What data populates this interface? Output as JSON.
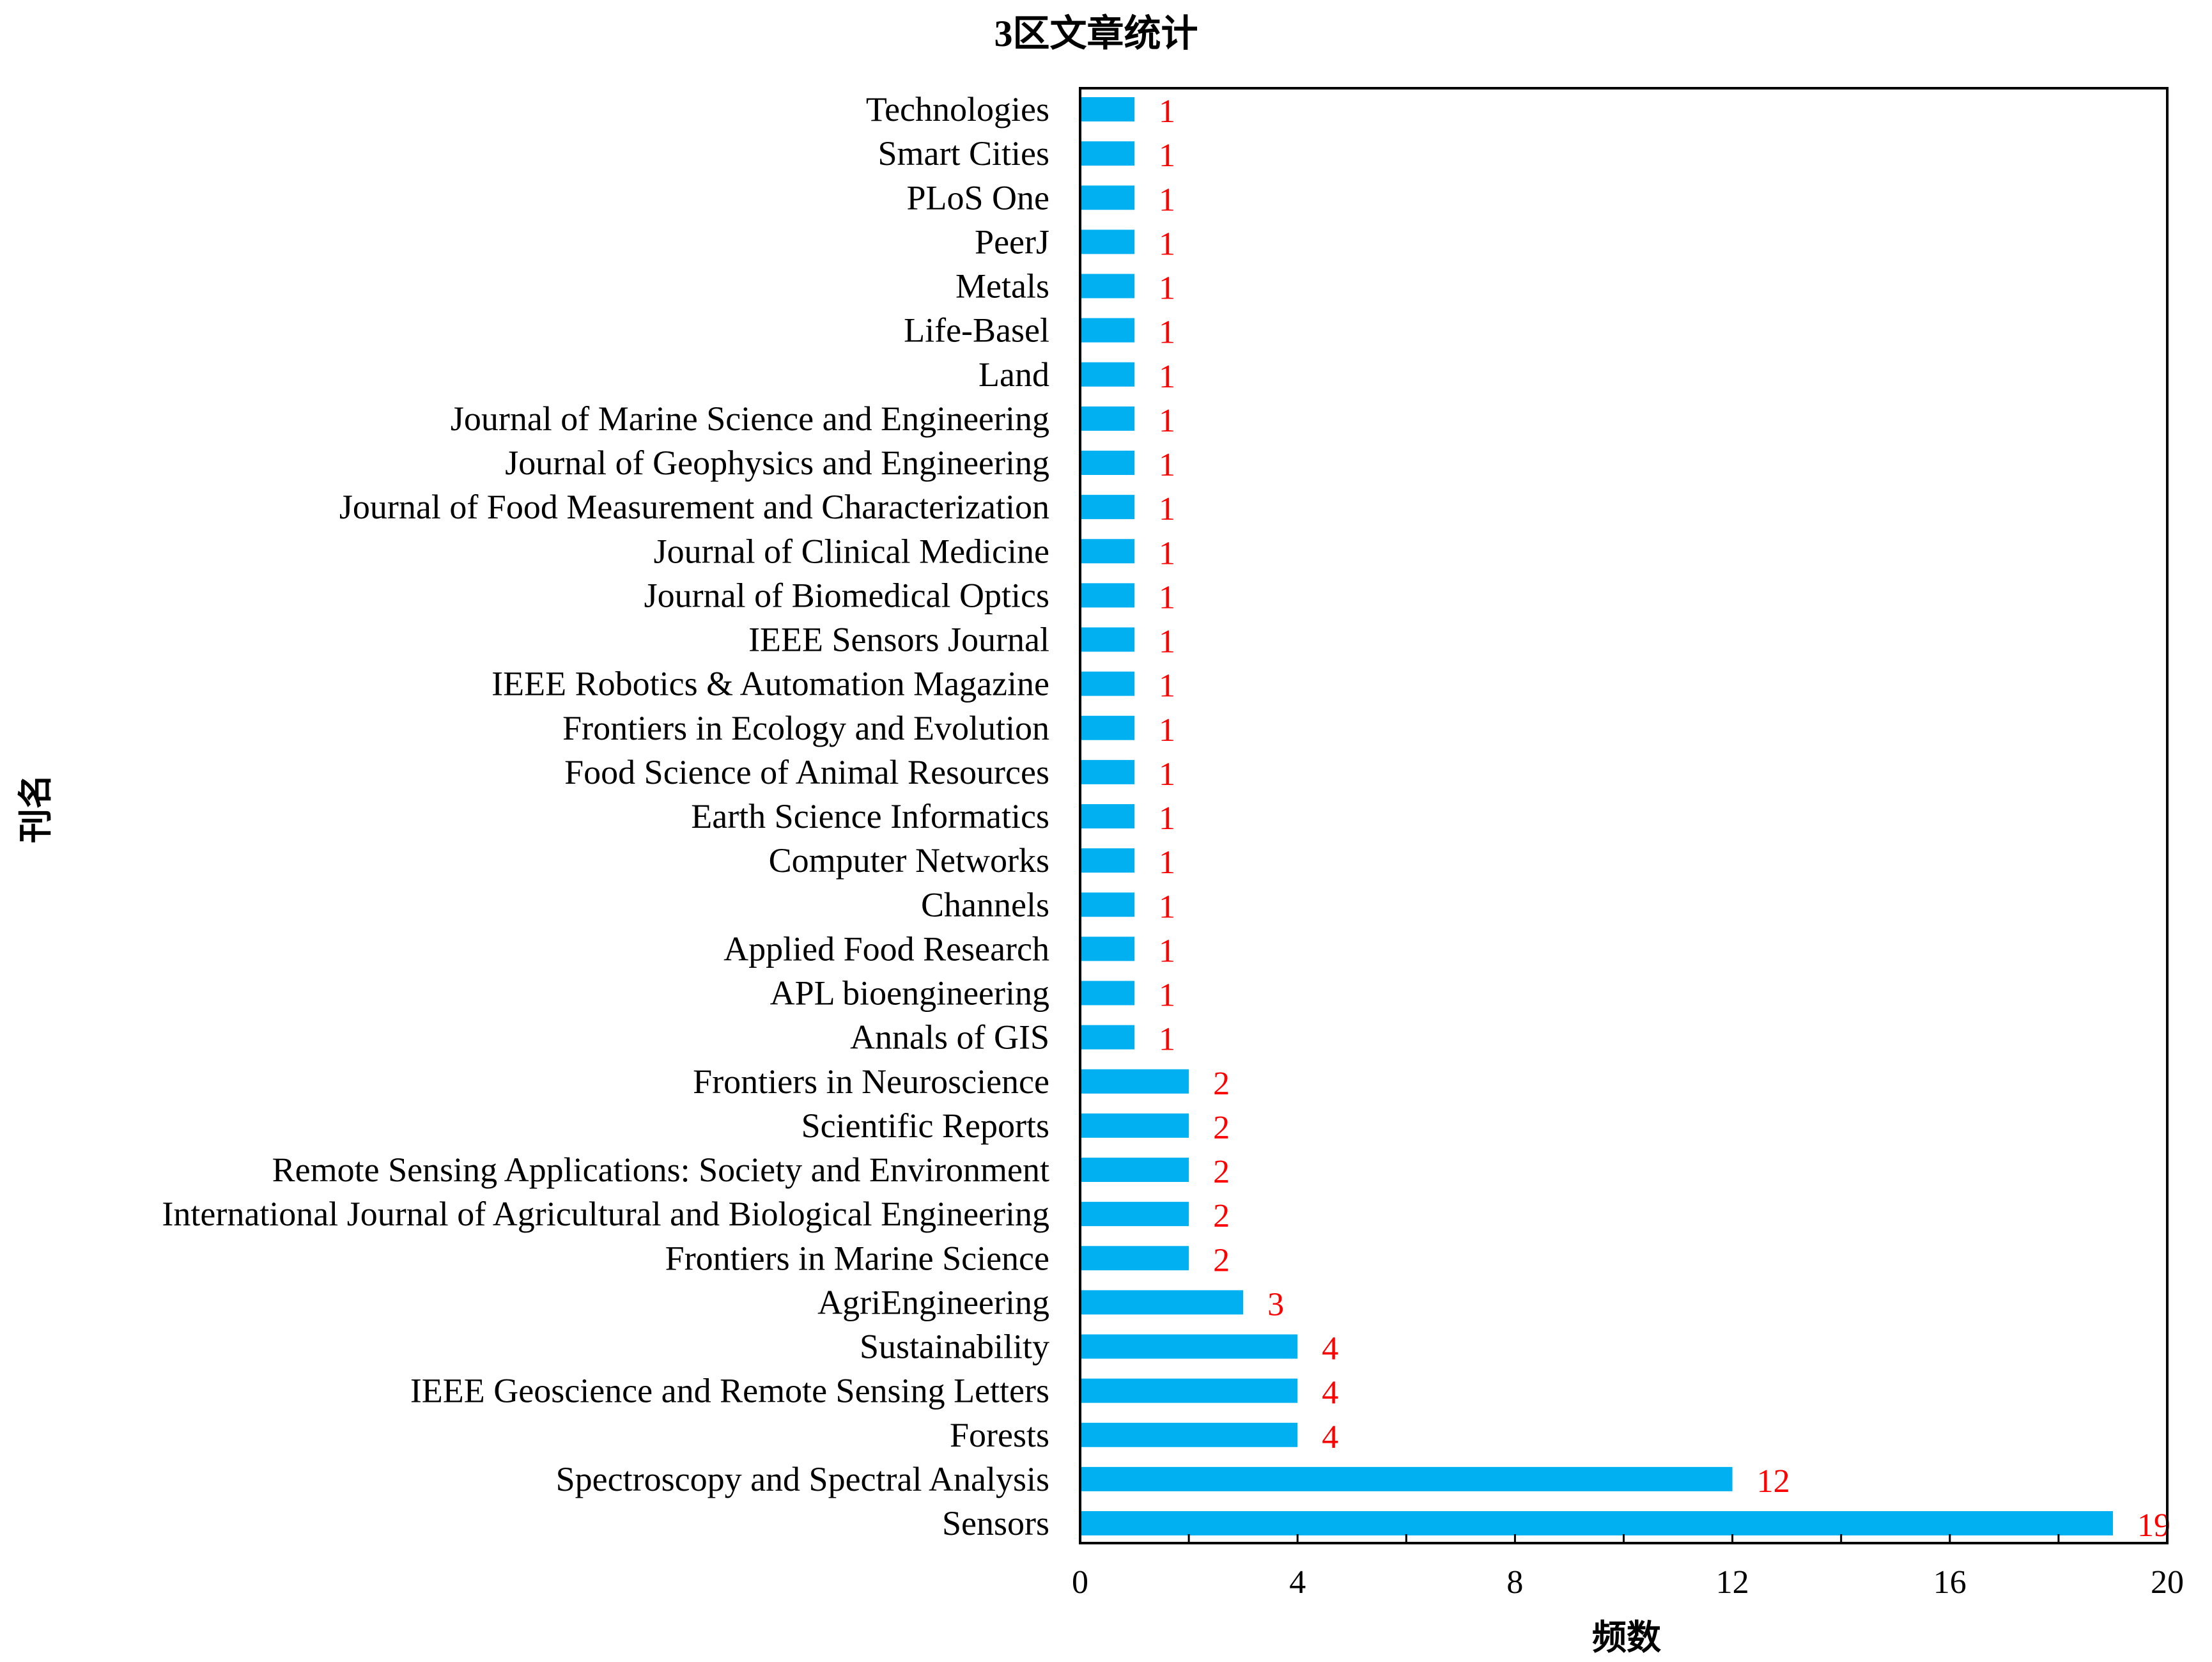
{
  "chart_data": {
    "type": "bar",
    "orientation": "horizontal",
    "title": "3区文章统计",
    "xlabel": "频数",
    "ylabel": "刊名",
    "xlim": [
      0,
      20
    ],
    "xticks": [
      0,
      4,
      8,
      12,
      16,
      20
    ],
    "xticks_label": [
      "0",
      "4",
      "8",
      "12",
      "16",
      "20"
    ],
    "grid": false,
    "legend": "none",
    "bar_color": "#00B0F0",
    "label_color": "#FF0000",
    "categories": [
      "Technologies",
      "Smart Cities",
      "PLoS One",
      "PeerJ",
      "Metals",
      "Life-Basel",
      "Land",
      "Journal of Marine Science and Engineering",
      "Journal of Geophysics and Engineering",
      "Journal of Food Measurement and Characterization",
      "Journal of Clinical Medicine",
      "Journal of Biomedical Optics",
      "IEEE Sensors Journal",
      "IEEE Robotics & Automation Magazine",
      "Frontiers in Ecology and Evolution",
      "Food Science of Animal Resources",
      "Earth Science Informatics",
      "Computer Networks",
      "Channels",
      "Applied Food Research",
      "APL bioengineering",
      "Annals of GIS",
      "Frontiers in Neuroscience",
      "Scientific Reports",
      "Remote Sensing Applications: Society and Environment",
      "International Journal of Agricultural and Biological Engineering",
      "Frontiers in Marine Science",
      "AgriEngineering",
      "Sustainability",
      "IEEE Geoscience and Remote Sensing Letters",
      "Forests",
      "Spectroscopy and Spectral Analysis",
      "Sensors"
    ],
    "values": [
      1,
      1,
      1,
      1,
      1,
      1,
      1,
      1,
      1,
      1,
      1,
      1,
      1,
      1,
      1,
      1,
      1,
      1,
      1,
      1,
      1,
      1,
      2,
      2,
      2,
      2,
      2,
      3,
      4,
      4,
      4,
      12,
      19
    ],
    "value_labels": [
      "1",
      "1",
      "1",
      "1",
      "1",
      "1",
      "1",
      "1",
      "1",
      "1",
      "1",
      "1",
      "1",
      "1",
      "1",
      "1",
      "1",
      "1",
      "1",
      "1",
      "1",
      "1",
      "2",
      "2",
      "2",
      "2",
      "2",
      "3",
      "4",
      "4",
      "4",
      "12",
      "19"
    ]
  }
}
